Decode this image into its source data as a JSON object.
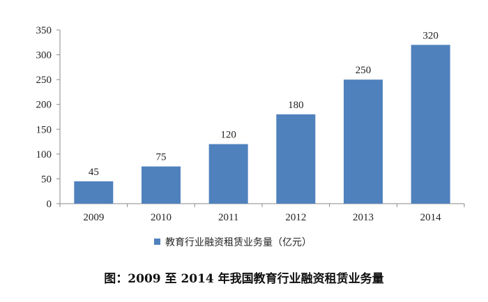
{
  "chart_data": {
    "type": "bar",
    "categories": [
      "2009",
      "2010",
      "2011",
      "2012",
      "2013",
      "2014"
    ],
    "values": [
      45,
      75,
      120,
      180,
      250,
      320
    ],
    "data_labels": [
      "45",
      "75",
      "120",
      "180",
      "250",
      "320"
    ],
    "series": [
      {
        "name": "教育行业融资租赁业务量（亿元）",
        "values": [
          45,
          75,
          120,
          180,
          250,
          320
        ]
      }
    ],
    "ylim": [
      0,
      350
    ],
    "yticks": [
      0,
      50,
      100,
      150,
      200,
      250,
      300,
      350
    ],
    "ytick_labels": [
      "0",
      "50",
      "100",
      "150",
      "200",
      "250",
      "300",
      "350"
    ],
    "bar_color": "#4f81bd",
    "legend_position": "bottom",
    "grid": false
  },
  "caption": "图：2009 至 2014 年我国教育行业融资租赁业务量"
}
